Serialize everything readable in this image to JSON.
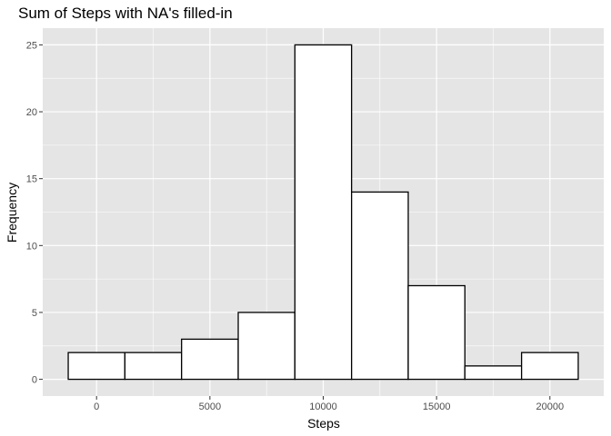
{
  "chart_data": {
    "type": "bar",
    "title": "Sum of Steps with NA's filled-in",
    "xlabel": "Steps",
    "ylabel": "Frequency",
    "bins": [
      {
        "start": -1250,
        "end": 1250,
        "count": 2
      },
      {
        "start": 1250,
        "end": 3750,
        "count": 2
      },
      {
        "start": 3750,
        "end": 6250,
        "count": 3
      },
      {
        "start": 6250,
        "end": 8750,
        "count": 5
      },
      {
        "start": 8750,
        "end": 11250,
        "count": 25
      },
      {
        "start": 11250,
        "end": 13750,
        "count": 14
      },
      {
        "start": 13750,
        "end": 16250,
        "count": 7
      },
      {
        "start": 16250,
        "end": 18750,
        "count": 1
      },
      {
        "start": 18750,
        "end": 21250,
        "count": 2
      }
    ],
    "xlim": [
      -2375,
      22375
    ],
    "ylim": [
      -1.25,
      26.25
    ],
    "xticks": [
      0,
      5000,
      10000,
      15000,
      20000
    ],
    "yticks": [
      0,
      5,
      10,
      15,
      20,
      25
    ],
    "xtick_labels": [
      "0",
      "5000",
      "10000",
      "15000",
      "20000"
    ],
    "ytick_labels": [
      "0",
      "5",
      "10",
      "15",
      "20",
      "25"
    ],
    "grid": true,
    "legend": "none",
    "colors": {
      "panel": "#e5e5e5",
      "grid": "#ffffff",
      "bar_fill": "#ffffff",
      "bar_stroke": "#000000",
      "tick_text": "#4d4d4d",
      "tick_mark": "#333333",
      "text": "#000000"
    }
  }
}
